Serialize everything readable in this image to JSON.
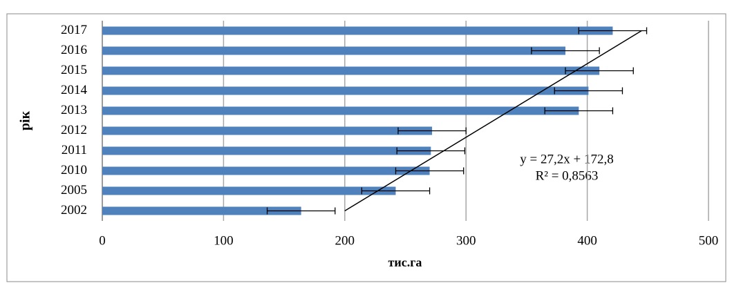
{
  "chart_data": {
    "type": "bar",
    "orientation": "horizontal",
    "xlabel": "тис.га",
    "ylabel": "рік",
    "categories": [
      "2002",
      "2005",
      "2010",
      "2011",
      "2012",
      "2013",
      "2014",
      "2015",
      "2016",
      "2017"
    ],
    "values": [
      164,
      242,
      270,
      271,
      272,
      393,
      401,
      410,
      382,
      421
    ],
    "errors": [
      28,
      28,
      28,
      28,
      28,
      28,
      28,
      28,
      28,
      28
    ],
    "color": "#4f81bd",
    "xlim": [
      0,
      500
    ],
    "xticks": [
      0,
      100,
      200,
      300,
      400,
      500
    ],
    "grid": true,
    "trendline": {
      "slope": 27.2,
      "intercept": 172.8,
      "equation": "y = 27,2x + 172,8",
      "r_squared": "R² = 0,8563"
    }
  }
}
